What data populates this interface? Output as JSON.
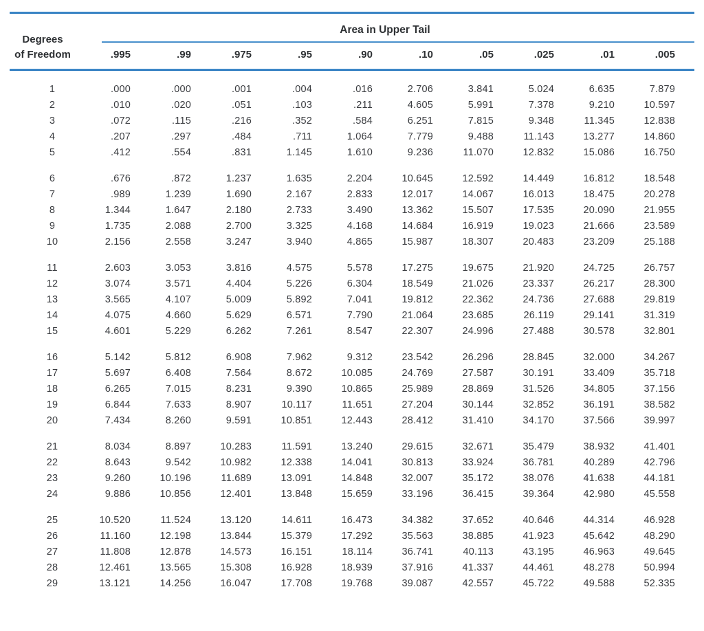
{
  "colors": {
    "rule_blue": "#2878be",
    "text": "#3a3c40",
    "header_text": "#2d3033",
    "background": "#ffffff"
  },
  "table": {
    "row_header_line1": "Degrees",
    "row_header_line2": "of Freedom",
    "span_header": "Area in Upper Tail",
    "columns": [
      ".995",
      ".99",
      ".975",
      ".95",
      ".90",
      ".10",
      ".05",
      ".025",
      ".01",
      ".005"
    ],
    "row_groups": [
      {
        "rows": [
          {
            "df": "1",
            "values": [
              ".000",
              ".000",
              ".001",
              ".004",
              ".016",
              "2.706",
              "3.841",
              "5.024",
              "6.635",
              "7.879"
            ]
          },
          {
            "df": "2",
            "values": [
              ".010",
              ".020",
              ".051",
              ".103",
              ".211",
              "4.605",
              "5.991",
              "7.378",
              "9.210",
              "10.597"
            ]
          },
          {
            "df": "3",
            "values": [
              ".072",
              ".115",
              ".216",
              ".352",
              ".584",
              "6.251",
              "7.815",
              "9.348",
              "11.345",
              "12.838"
            ]
          },
          {
            "df": "4",
            "values": [
              ".207",
              ".297",
              ".484",
              ".711",
              "1.064",
              "7.779",
              "9.488",
              "11.143",
              "13.277",
              "14.860"
            ]
          },
          {
            "df": "5",
            "values": [
              ".412",
              ".554",
              ".831",
              "1.145",
              "1.610",
              "9.236",
              "11.070",
              "12.832",
              "15.086",
              "16.750"
            ]
          }
        ]
      },
      {
        "rows": [
          {
            "df": "6",
            "values": [
              ".676",
              ".872",
              "1.237",
              "1.635",
              "2.204",
              "10.645",
              "12.592",
              "14.449",
              "16.812",
              "18.548"
            ]
          },
          {
            "df": "7",
            "values": [
              ".989",
              "1.239",
              "1.690",
              "2.167",
              "2.833",
              "12.017",
              "14.067",
              "16.013",
              "18.475",
              "20.278"
            ]
          },
          {
            "df": "8",
            "values": [
              "1.344",
              "1.647",
              "2.180",
              "2.733",
              "3.490",
              "13.362",
              "15.507",
              "17.535",
              "20.090",
              "21.955"
            ]
          },
          {
            "df": "9",
            "values": [
              "1.735",
              "2.088",
              "2.700",
              "3.325",
              "4.168",
              "14.684",
              "16.919",
              "19.023",
              "21.666",
              "23.589"
            ]
          },
          {
            "df": "10",
            "values": [
              "2.156",
              "2.558",
              "3.247",
              "3.940",
              "4.865",
              "15.987",
              "18.307",
              "20.483",
              "23.209",
              "25.188"
            ]
          }
        ]
      },
      {
        "rows": [
          {
            "df": "11",
            "values": [
              "2.603",
              "3.053",
              "3.816",
              "4.575",
              "5.578",
              "17.275",
              "19.675",
              "21.920",
              "24.725",
              "26.757"
            ]
          },
          {
            "df": "12",
            "values": [
              "3.074",
              "3.571",
              "4.404",
              "5.226",
              "6.304",
              "18.549",
              "21.026",
              "23.337",
              "26.217",
              "28.300"
            ]
          },
          {
            "df": "13",
            "values": [
              "3.565",
              "4.107",
              "5.009",
              "5.892",
              "7.041",
              "19.812",
              "22.362",
              "24.736",
              "27.688",
              "29.819"
            ]
          },
          {
            "df": "14",
            "values": [
              "4.075",
              "4.660",
              "5.629",
              "6.571",
              "7.790",
              "21.064",
              "23.685",
              "26.119",
              "29.141",
              "31.319"
            ]
          },
          {
            "df": "15",
            "values": [
              "4.601",
              "5.229",
              "6.262",
              "7.261",
              "8.547",
              "22.307",
              "24.996",
              "27.488",
              "30.578",
              "32.801"
            ]
          }
        ]
      },
      {
        "rows": [
          {
            "df": "16",
            "values": [
              "5.142",
              "5.812",
              "6.908",
              "7.962",
              "9.312",
              "23.542",
              "26.296",
              "28.845",
              "32.000",
              "34.267"
            ]
          },
          {
            "df": "17",
            "values": [
              "5.697",
              "6.408",
              "7.564",
              "8.672",
              "10.085",
              "24.769",
              "27.587",
              "30.191",
              "33.409",
              "35.718"
            ]
          },
          {
            "df": "18",
            "values": [
              "6.265",
              "7.015",
              "8.231",
              "9.390",
              "10.865",
              "25.989",
              "28.869",
              "31.526",
              "34.805",
              "37.156"
            ]
          },
          {
            "df": "19",
            "values": [
              "6.844",
              "7.633",
              "8.907",
              "10.117",
              "11.651",
              "27.204",
              "30.144",
              "32.852",
              "36.191",
              "38.582"
            ]
          },
          {
            "df": "20",
            "values": [
              "7.434",
              "8.260",
              "9.591",
              "10.851",
              "12.443",
              "28.412",
              "31.410",
              "34.170",
              "37.566",
              "39.997"
            ]
          }
        ]
      },
      {
        "rows": [
          {
            "df": "21",
            "values": [
              "8.034",
              "8.897",
              "10.283",
              "11.591",
              "13.240",
              "29.615",
              "32.671",
              "35.479",
              "38.932",
              "41.401"
            ]
          },
          {
            "df": "22",
            "values": [
              "8.643",
              "9.542",
              "10.982",
              "12.338",
              "14.041",
              "30.813",
              "33.924",
              "36.781",
              "40.289",
              "42.796"
            ]
          },
          {
            "df": "23",
            "values": [
              "9.260",
              "10.196",
              "11.689",
              "13.091",
              "14.848",
              "32.007",
              "35.172",
              "38.076",
              "41.638",
              "44.181"
            ]
          },
          {
            "df": "24",
            "values": [
              "9.886",
              "10.856",
              "12.401",
              "13.848",
              "15.659",
              "33.196",
              "36.415",
              "39.364",
              "42.980",
              "45.558"
            ]
          }
        ]
      },
      {
        "rows": [
          {
            "df": "25",
            "values": [
              "10.520",
              "11.524",
              "13.120",
              "14.611",
              "16.473",
              "34.382",
              "37.652",
              "40.646",
              "44.314",
              "46.928"
            ]
          },
          {
            "df": "26",
            "values": [
              "11.160",
              "12.198",
              "13.844",
              "15.379",
              "17.292",
              "35.563",
              "38.885",
              "41.923",
              "45.642",
              "48.290"
            ]
          },
          {
            "df": "27",
            "values": [
              "11.808",
              "12.878",
              "14.573",
              "16.151",
              "18.114",
              "36.741",
              "40.113",
              "43.195",
              "46.963",
              "49.645"
            ]
          },
          {
            "df": "28",
            "values": [
              "12.461",
              "13.565",
              "15.308",
              "16.928",
              "18.939",
              "37.916",
              "41.337",
              "44.461",
              "48.278",
              "50.994"
            ]
          },
          {
            "df": "29",
            "values": [
              "13.121",
              "14.256",
              "16.047",
              "17.708",
              "19.768",
              "39.087",
              "42.557",
              "45.722",
              "49.588",
              "52.335"
            ]
          }
        ]
      }
    ]
  }
}
